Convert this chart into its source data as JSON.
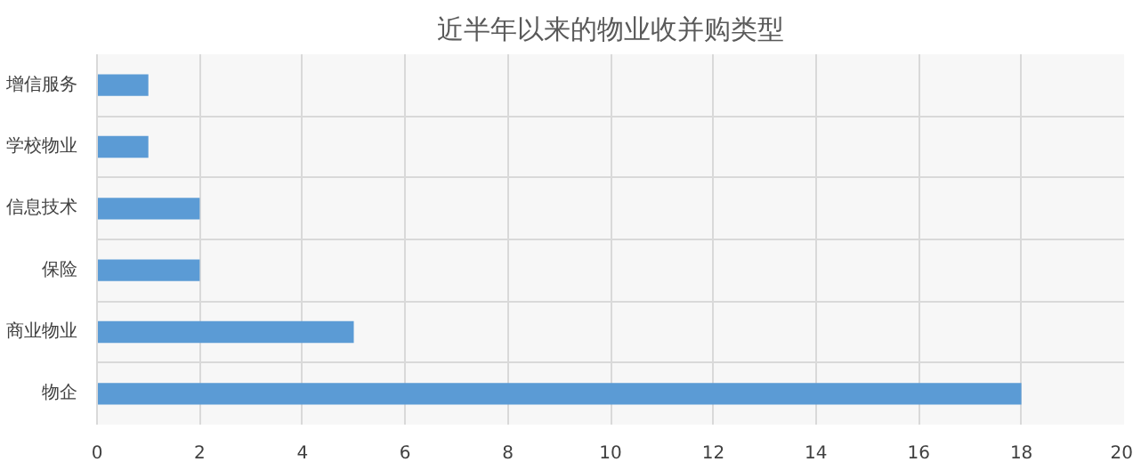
{
  "chart_data": {
    "type": "bar",
    "orientation": "horizontal",
    "title": "近半年以来的物业收并购类型",
    "categories": [
      "增信服务",
      "学校物业",
      "信息技术",
      "保险",
      "商业物业",
      "物企"
    ],
    "values": [
      1,
      1,
      2,
      2,
      5,
      18
    ],
    "color": "#5b9bd5",
    "xlim": [
      0,
      20
    ],
    "xticks": [
      0,
      2,
      4,
      6,
      8,
      10,
      12,
      14,
      16,
      18,
      20
    ],
    "grid": true
  }
}
